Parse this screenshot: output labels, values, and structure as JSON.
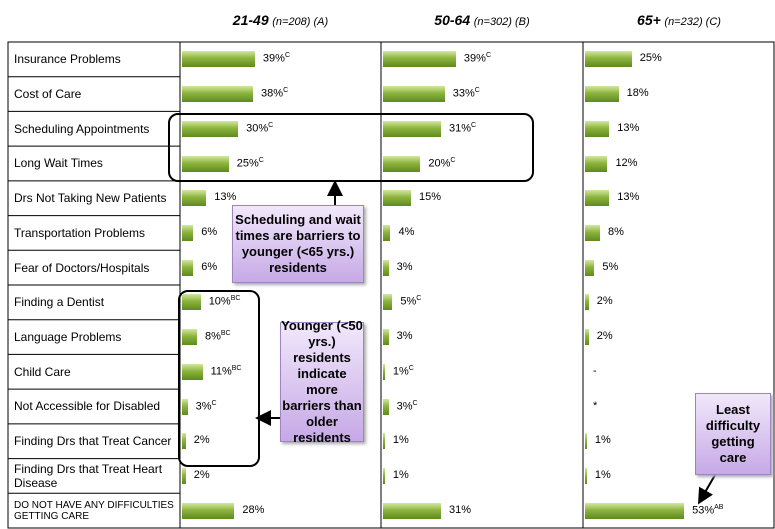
{
  "chart_data": {
    "type": "bar",
    "orientation": "horizontal",
    "categories": [
      "Insurance Problems",
      "Cost of Care",
      "Scheduling Appointments",
      "Long Wait Times",
      "Drs Not Taking New Patients",
      "Transportation Problems",
      "Fear of Doctors/Hospitals",
      "Finding a Dentist",
      "Language Problems",
      "Child Care",
      "Not Accessible for Disabled",
      "Finding Drs that Treat Cancer",
      "Finding Drs that Treat Heart Disease",
      "DO NOT HAVE ANY DIFFICULTIES GETTING CARE"
    ],
    "xlim": [
      0,
      100
    ],
    "series": [
      {
        "name": "21-49",
        "note": "(n=208) (A)",
        "color": "#8db43e",
        "values": [
          39,
          38,
          30,
          25,
          13,
          6,
          6,
          10,
          8,
          11,
          3,
          2,
          2,
          28
        ],
        "value_labels": [
          "39%",
          "38%",
          "30%",
          "25%",
          "13%",
          "6%",
          "6%",
          "10%",
          "8%",
          "11%",
          "3%",
          "2%",
          "2%",
          "28%"
        ],
        "superscripts": [
          "C",
          "C",
          "C",
          "C",
          null,
          null,
          null,
          "BC",
          "BC",
          "BC",
          "C",
          null,
          null,
          null
        ]
      },
      {
        "name": "50-64",
        "note": "(n=302) (B)",
        "color": "#8db43e",
        "values": [
          39,
          33,
          31,
          20,
          15,
          4,
          3,
          5,
          3,
          1,
          3,
          1,
          1,
          31
        ],
        "value_labels": [
          "39%",
          "33%",
          "31%",
          "20%",
          "15%",
          "4%",
          "3%",
          "5%",
          "3%",
          "1%",
          "3%",
          "1%",
          "1%",
          "31%"
        ],
        "superscripts": [
          "C",
          "C",
          "C",
          "C",
          null,
          null,
          null,
          "C",
          null,
          "C",
          "C",
          null,
          null,
          null
        ]
      },
      {
        "name": "65+",
        "note": "(n=232) (C)",
        "color": "#8db43e",
        "values": [
          25,
          18,
          13,
          12,
          13,
          8,
          5,
          2,
          2,
          null,
          null,
          1,
          1,
          53
        ],
        "value_labels": [
          "25%",
          "18%",
          "13%",
          "12%",
          "13%",
          "8%",
          "5%",
          "2%",
          "2%",
          "-",
          "*",
          "1%",
          "1%",
          "53%"
        ],
        "superscripts": [
          null,
          null,
          null,
          null,
          null,
          null,
          null,
          null,
          null,
          null,
          null,
          null,
          null,
          "AB"
        ]
      }
    ],
    "annotations": [
      {
        "lines": [
          "Scheduling and wait",
          "times are barriers to",
          "younger (<65 yrs.)",
          "residents"
        ]
      },
      {
        "lines": [
          "Younger (<50",
          "yrs.) residents",
          "indicate more",
          "barriers than",
          "older",
          "residents"
        ]
      },
      {
        "lines": [
          "Least",
          "difficulty",
          "getting",
          "care"
        ]
      }
    ]
  }
}
